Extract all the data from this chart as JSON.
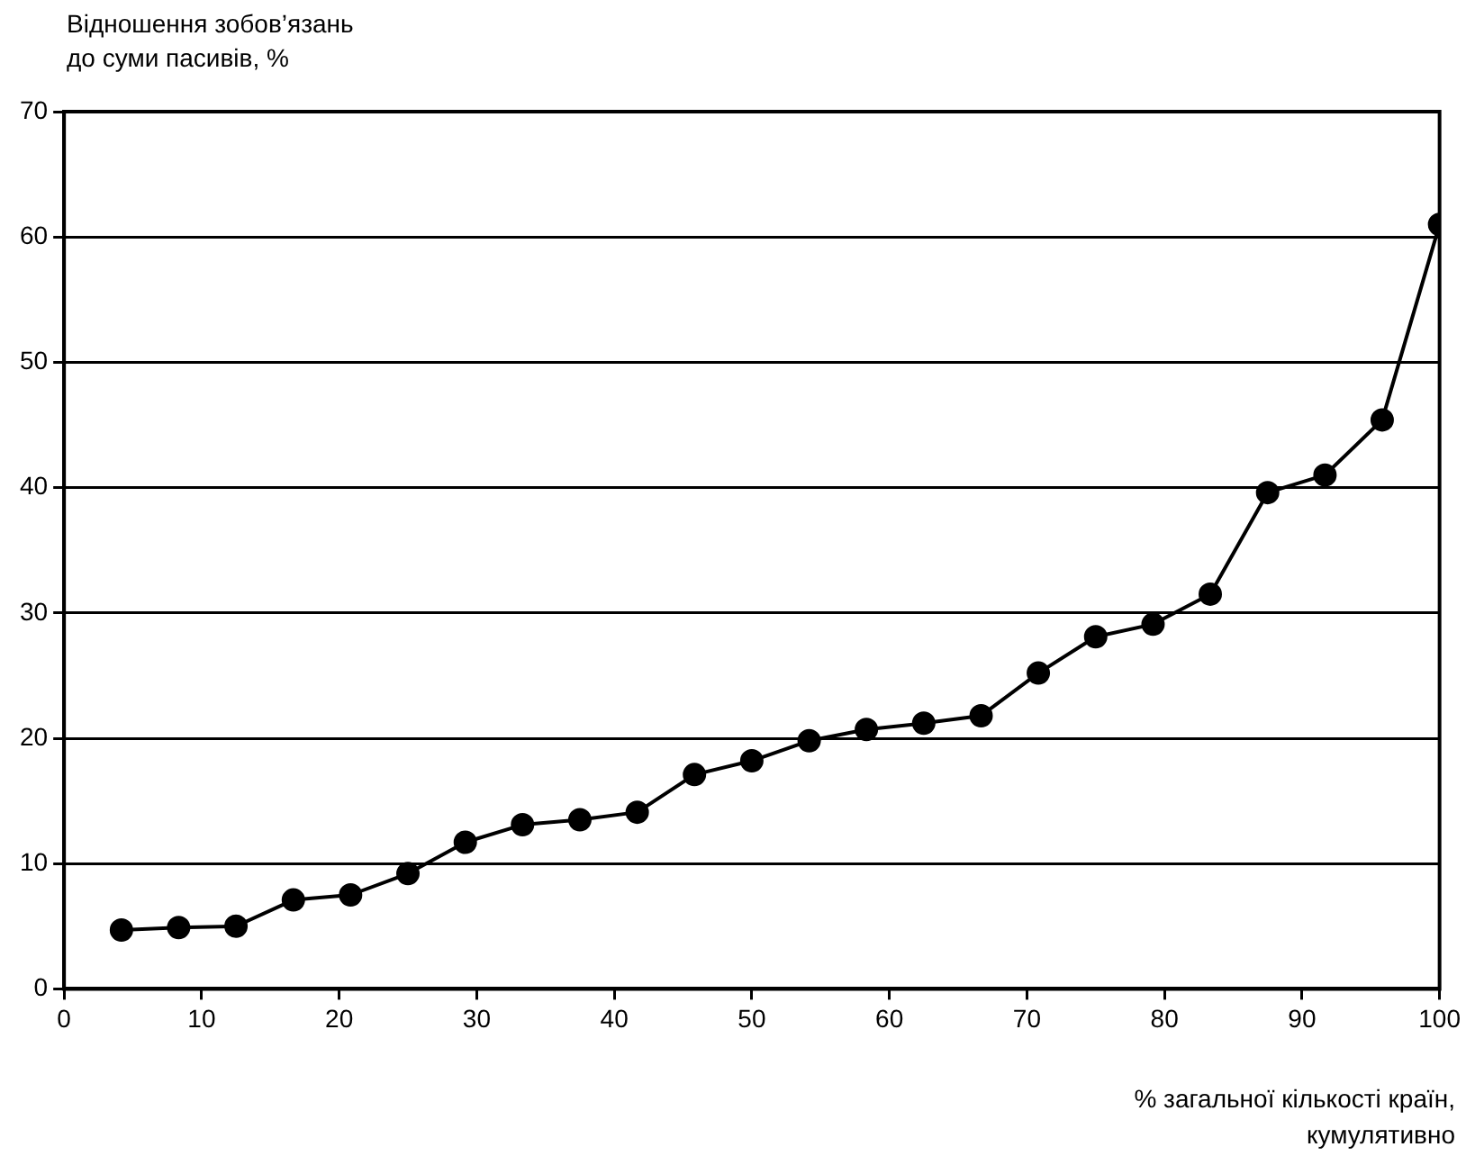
{
  "chart_data": {
    "type": "line",
    "ylabel": "Відношення зобов’язань\nдо суми пасивів, %",
    "xlabel": "% загальної кількості країн,\nкумулятивно",
    "x": [
      4.17,
      8.33,
      12.5,
      16.67,
      20.83,
      25,
      29.17,
      33.33,
      37.5,
      41.67,
      45.83,
      50,
      54.17,
      58.33,
      62.5,
      66.67,
      70.83,
      75,
      79.17,
      83.33,
      87.5,
      91.67,
      95.83,
      100
    ],
    "series": [
      {
        "color": "#000000",
        "values": [
          4.7,
          4.9,
          5.0,
          7.1,
          7.5,
          9.2,
          11.7,
          13.1,
          13.5,
          14.1,
          17.1,
          18.2,
          19.8,
          20.7,
          21.2,
          21.8,
          25.2,
          28.1,
          29.1,
          31.5,
          39.6,
          41.0,
          45.4,
          61.0
        ]
      }
    ],
    "xlim": [
      0,
      100
    ],
    "xticks": [
      0,
      10,
      20,
      30,
      40,
      50,
      60,
      70,
      80,
      90,
      100
    ],
    "ylim": [
      0,
      70
    ],
    "yticks": [
      0,
      10,
      20,
      30,
      40,
      50,
      60,
      70
    ],
    "grid": "y",
    "legend": false,
    "marker": "circle",
    "line_style": "solid"
  }
}
